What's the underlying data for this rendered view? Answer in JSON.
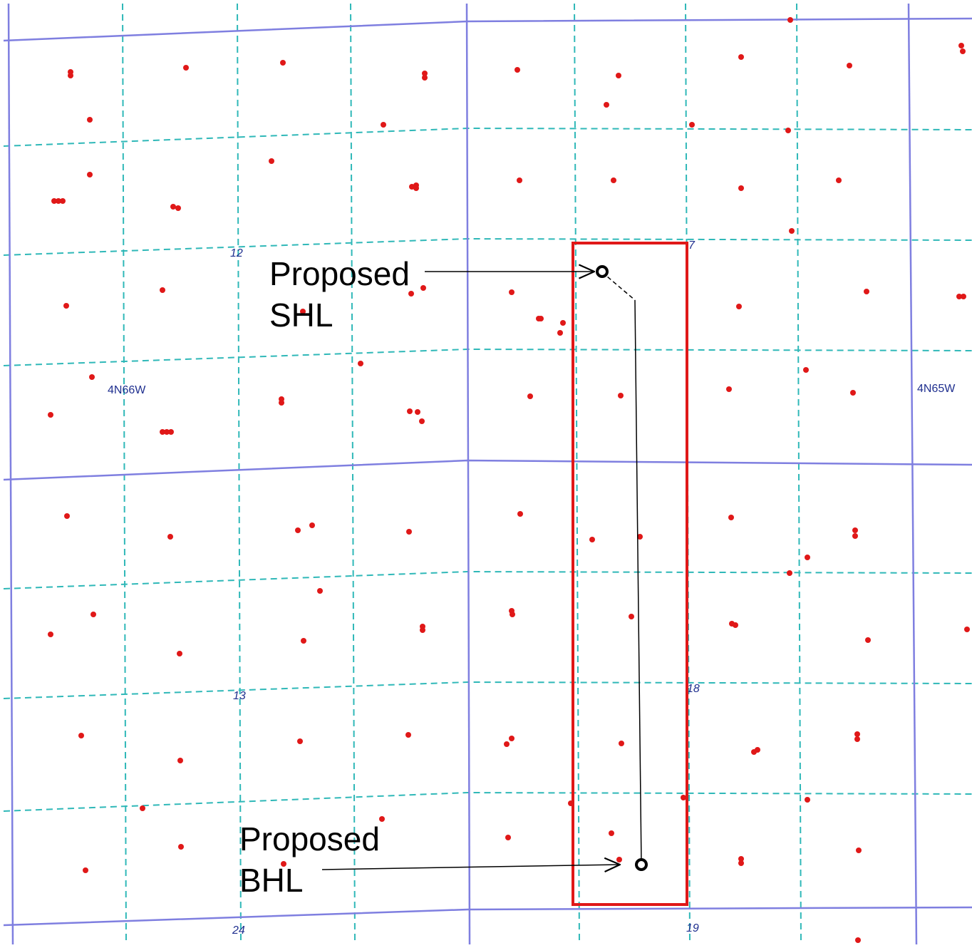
{
  "map": {
    "colors": {
      "background": "#ffffff",
      "township_line": "#7f7fe0",
      "quarter_line": "#2fb8b8",
      "well": "#e01818",
      "unit_box": "#e01818",
      "label": "#1f2f8f",
      "annotation": "#000000"
    },
    "township_labels": [
      "4N66W",
      "4N65W"
    ],
    "section_labels": [
      "12",
      "7",
      "13",
      "18",
      "24",
      "19"
    ],
    "annotations": {
      "shl": {
        "line1": "Proposed",
        "line2": "SHL"
      },
      "bhl": {
        "line1": "Proposed",
        "line2": "BHL"
      }
    }
  }
}
